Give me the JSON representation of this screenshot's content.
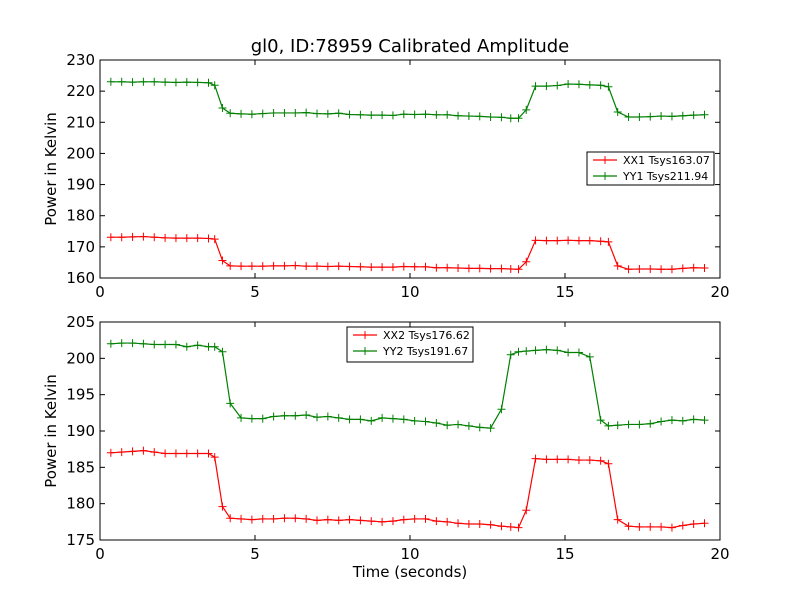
{
  "figure": {
    "title": "gl0, ID:78959 Calibrated Amplitude"
  },
  "chart_data": [
    {
      "type": "line",
      "title": "gl0, ID:78959 Calibrated Amplitude",
      "xlabel": "",
      "ylabel": "Power in Kelvin",
      "xlim": [
        0,
        20
      ],
      "ylim": [
        160,
        230
      ],
      "xticks": [
        0,
        5,
        10,
        15,
        20
      ],
      "yticks": [
        160,
        170,
        180,
        190,
        200,
        210,
        220,
        230
      ],
      "legend_position": "center-right",
      "x": [
        0.35,
        0.7,
        1.05,
        1.4,
        1.75,
        2.1,
        2.45,
        2.8,
        3.15,
        3.5,
        3.7,
        3.95,
        4.2,
        4.55,
        4.9,
        5.25,
        5.6,
        5.95,
        6.3,
        6.65,
        7.0,
        7.35,
        7.7,
        8.05,
        8.4,
        8.75,
        9.1,
        9.45,
        9.8,
        10.15,
        10.5,
        10.85,
        11.2,
        11.55,
        11.9,
        12.25,
        12.6,
        12.95,
        13.25,
        13.5,
        13.75,
        14.05,
        14.4,
        14.75,
        15.1,
        15.45,
        15.8,
        16.15,
        16.4,
        16.7,
        17.05,
        17.4,
        17.75,
        18.1,
        18.45,
        18.8,
        19.15,
        19.5
      ],
      "series": [
        {
          "name": "XX1 Tsys163.07",
          "color": "#ff0000",
          "values": [
            173.1,
            173.1,
            173.2,
            173.3,
            173.1,
            172.9,
            172.8,
            172.8,
            172.8,
            172.7,
            172.5,
            165.6,
            163.9,
            163.8,
            163.8,
            163.8,
            163.9,
            163.9,
            164.0,
            163.8,
            163.8,
            163.7,
            163.8,
            163.7,
            163.6,
            163.5,
            163.5,
            163.5,
            163.7,
            163.6,
            163.6,
            163.3,
            163.3,
            163.2,
            163.1,
            163.1,
            163.0,
            163.0,
            162.9,
            162.8,
            165.2,
            172.1,
            172.0,
            172.0,
            172.1,
            172.0,
            172.0,
            171.8,
            171.6,
            163.9,
            162.8,
            162.9,
            162.9,
            162.8,
            162.8,
            163.1,
            163.3,
            163.2
          ]
        },
        {
          "name": "YY1 Tsys211.94",
          "color": "#008000",
          "values": [
            223.0,
            223.0,
            222.9,
            223.0,
            223.0,
            222.9,
            222.8,
            222.9,
            222.8,
            222.7,
            221.9,
            214.6,
            212.9,
            212.7,
            212.6,
            212.8,
            213.0,
            213.0,
            213.0,
            213.1,
            212.8,
            212.7,
            212.9,
            212.5,
            212.4,
            212.3,
            212.3,
            212.2,
            212.6,
            212.5,
            212.6,
            212.4,
            212.4,
            212.1,
            212.0,
            211.9,
            211.7,
            211.6,
            211.3,
            211.3,
            214.0,
            221.6,
            221.6,
            221.8,
            222.3,
            222.2,
            222.0,
            221.9,
            221.4,
            213.3,
            211.7,
            211.7,
            211.8,
            212.0,
            211.9,
            212.1,
            212.3,
            212.4
          ]
        }
      ]
    },
    {
      "type": "line",
      "title": "",
      "xlabel": "Time (seconds)",
      "ylabel": "Power in Kelvin",
      "xlim": [
        0,
        20
      ],
      "ylim": [
        175,
        205
      ],
      "xticks": [
        0,
        5,
        10,
        15,
        20
      ],
      "yticks": [
        175,
        180,
        185,
        190,
        195,
        200,
        205
      ],
      "legend_position": "top-center",
      "x": [
        0.35,
        0.7,
        1.05,
        1.4,
        1.75,
        2.1,
        2.45,
        2.8,
        3.15,
        3.5,
        3.7,
        3.95,
        4.2,
        4.55,
        4.9,
        5.25,
        5.6,
        5.95,
        6.3,
        6.65,
        7.0,
        7.35,
        7.7,
        8.05,
        8.4,
        8.75,
        9.1,
        9.45,
        9.8,
        10.15,
        10.5,
        10.85,
        11.2,
        11.55,
        11.9,
        12.25,
        12.6,
        12.95,
        13.25,
        13.5,
        13.75,
        14.05,
        14.4,
        14.75,
        15.1,
        15.45,
        15.8,
        16.15,
        16.4,
        16.7,
        17.05,
        17.4,
        17.75,
        18.1,
        18.45,
        18.8,
        19.15,
        19.5
      ],
      "series": [
        {
          "name": "XX2 Tsys176.62",
          "color": "#ff0000",
          "values": [
            187.0,
            187.1,
            187.2,
            187.3,
            187.1,
            186.9,
            186.9,
            186.9,
            186.9,
            186.9,
            186.4,
            179.6,
            178.0,
            177.9,
            177.8,
            177.9,
            177.9,
            178.0,
            178.0,
            177.9,
            177.7,
            177.8,
            177.7,
            177.8,
            177.7,
            177.6,
            177.5,
            177.6,
            177.8,
            177.9,
            177.9,
            177.6,
            177.5,
            177.3,
            177.2,
            177.2,
            177.1,
            176.9,
            176.8,
            176.7,
            179.1,
            186.2,
            186.1,
            186.1,
            186.1,
            186.0,
            186.0,
            185.9,
            185.5,
            177.8,
            176.9,
            176.8,
            176.8,
            176.8,
            176.7,
            177.0,
            177.2,
            177.3
          ]
        },
        {
          "name": "YY2 Tsys191.67",
          "color": "#008000",
          "values": [
            202.0,
            202.1,
            202.1,
            202.0,
            201.9,
            201.9,
            201.9,
            201.6,
            201.8,
            201.6,
            201.6,
            200.9,
            193.8,
            191.8,
            191.7,
            191.7,
            192.0,
            192.1,
            192.1,
            192.2,
            191.9,
            192.0,
            191.8,
            191.6,
            191.6,
            191.4,
            191.8,
            191.7,
            191.6,
            191.4,
            191.3,
            191.1,
            190.8,
            190.9,
            190.7,
            190.5,
            190.4,
            193.0,
            200.5,
            200.9,
            201.0,
            201.1,
            201.2,
            201.1,
            200.8,
            200.8,
            200.2,
            191.5,
            190.7,
            190.8,
            190.9,
            190.9,
            191.0,
            191.3,
            191.5,
            191.4,
            191.6,
            191.5
          ]
        }
      ]
    }
  ]
}
